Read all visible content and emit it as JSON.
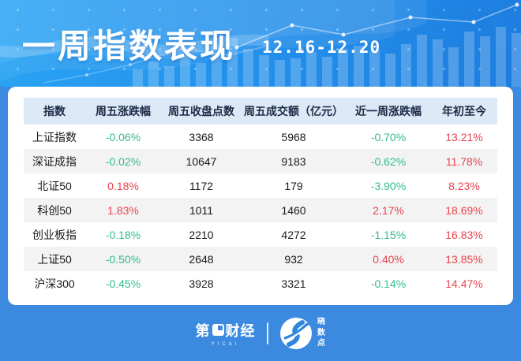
{
  "banner": {
    "title": "一周指数表现",
    "date_range": "12.16-12.20"
  },
  "table": {
    "headers": [
      "指数",
      "周五涨跌幅",
      "周五收盘点数",
      "周五成交额（亿元）",
      "近一周涨跌幅",
      "年初至今"
    ],
    "rows": [
      {
        "name": "上证指数",
        "fri_change": "-0.06%",
        "fri_change_dir": "down",
        "fri_close": "3368",
        "fri_turnover": "5968",
        "week_change": "-0.70%",
        "week_change_dir": "down",
        "ytd": "13.21%",
        "ytd_dir": "up"
      },
      {
        "name": "深证成指",
        "fri_change": "-0.02%",
        "fri_change_dir": "down",
        "fri_close": "10647",
        "fri_turnover": "9183",
        "week_change": "-0.62%",
        "week_change_dir": "down",
        "ytd": "11.78%",
        "ytd_dir": "up"
      },
      {
        "name": "北证50",
        "fri_change": "0.18%",
        "fri_change_dir": "up",
        "fri_close": "1172",
        "fri_turnover": "179",
        "week_change": "-3.90%",
        "week_change_dir": "down",
        "ytd": "8.23%",
        "ytd_dir": "up"
      },
      {
        "name": "科创50",
        "fri_change": "1.83%",
        "fri_change_dir": "up",
        "fri_close": "1011",
        "fri_turnover": "1460",
        "week_change": "2.17%",
        "week_change_dir": "up",
        "ytd": "18.69%",
        "ytd_dir": "up"
      },
      {
        "name": "创业板指",
        "fri_change": "-0.18%",
        "fri_change_dir": "down",
        "fri_close": "2210",
        "fri_turnover": "4272",
        "week_change": "-1.15%",
        "week_change_dir": "down",
        "ytd": "16.83%",
        "ytd_dir": "up"
      },
      {
        "name": "上证50",
        "fri_change": "-0.50%",
        "fri_change_dir": "down",
        "fri_close": "2648",
        "fri_turnover": "932",
        "week_change": "0.40%",
        "week_change_dir": "up",
        "ytd": "13.85%",
        "ytd_dir": "up"
      },
      {
        "name": "沪深300",
        "fri_change": "-0.45%",
        "fri_change_dir": "down",
        "fri_close": "3928",
        "fri_turnover": "3321",
        "week_change": "-0.14%",
        "week_change_dir": "down",
        "ytd": "14.47%",
        "ytd_dir": "up"
      }
    ]
  },
  "footer": {
    "left_logo_prefix": "第",
    "left_logo_suffix": "财经",
    "left_logo_sub": "YICAI",
    "right_logo": "晓数点"
  },
  "colors": {
    "up_red": "#e8444e",
    "down_green": "#33bd89",
    "page_blue": "#3b8adf",
    "banner_blue_light": "#2aa4f4",
    "banner_blue_dark": "#1d7ddf",
    "header_row_bg": "#dce9f7",
    "alt_row_bg": "#f3f3f3"
  },
  "chart_data": {
    "type": "table",
    "title": "一周指数表现",
    "subtitle": "12.16-12.20",
    "columns": [
      "指数",
      "周五涨跌幅",
      "周五收盘点数",
      "周五成交额（亿元）",
      "近一周涨跌幅",
      "年初至今"
    ],
    "rows": [
      [
        "上证指数",
        "-0.06%",
        3368,
        5968,
        "-0.70%",
        "13.21%"
      ],
      [
        "深证成指",
        "-0.02%",
        10647,
        9183,
        "-0.62%",
        "11.78%"
      ],
      [
        "北证50",
        "0.18%",
        1172,
        179,
        "-3.90%",
        "8.23%"
      ],
      [
        "科创50",
        "1.83%",
        1011,
        1460,
        "2.17%",
        "18.69%"
      ],
      [
        "创业板指",
        "-0.18%",
        2210,
        4272,
        "-1.15%",
        "16.83%"
      ],
      [
        "上证50",
        "-0.50%",
        2648,
        932,
        "0.40%",
        "13.85%"
      ],
      [
        "沪深300",
        "-0.45%",
        3928,
        3321,
        "-0.14%",
        "14.47%"
      ]
    ],
    "color_coding": "red = positive/up, green = negative/down (Chinese market convention)"
  }
}
